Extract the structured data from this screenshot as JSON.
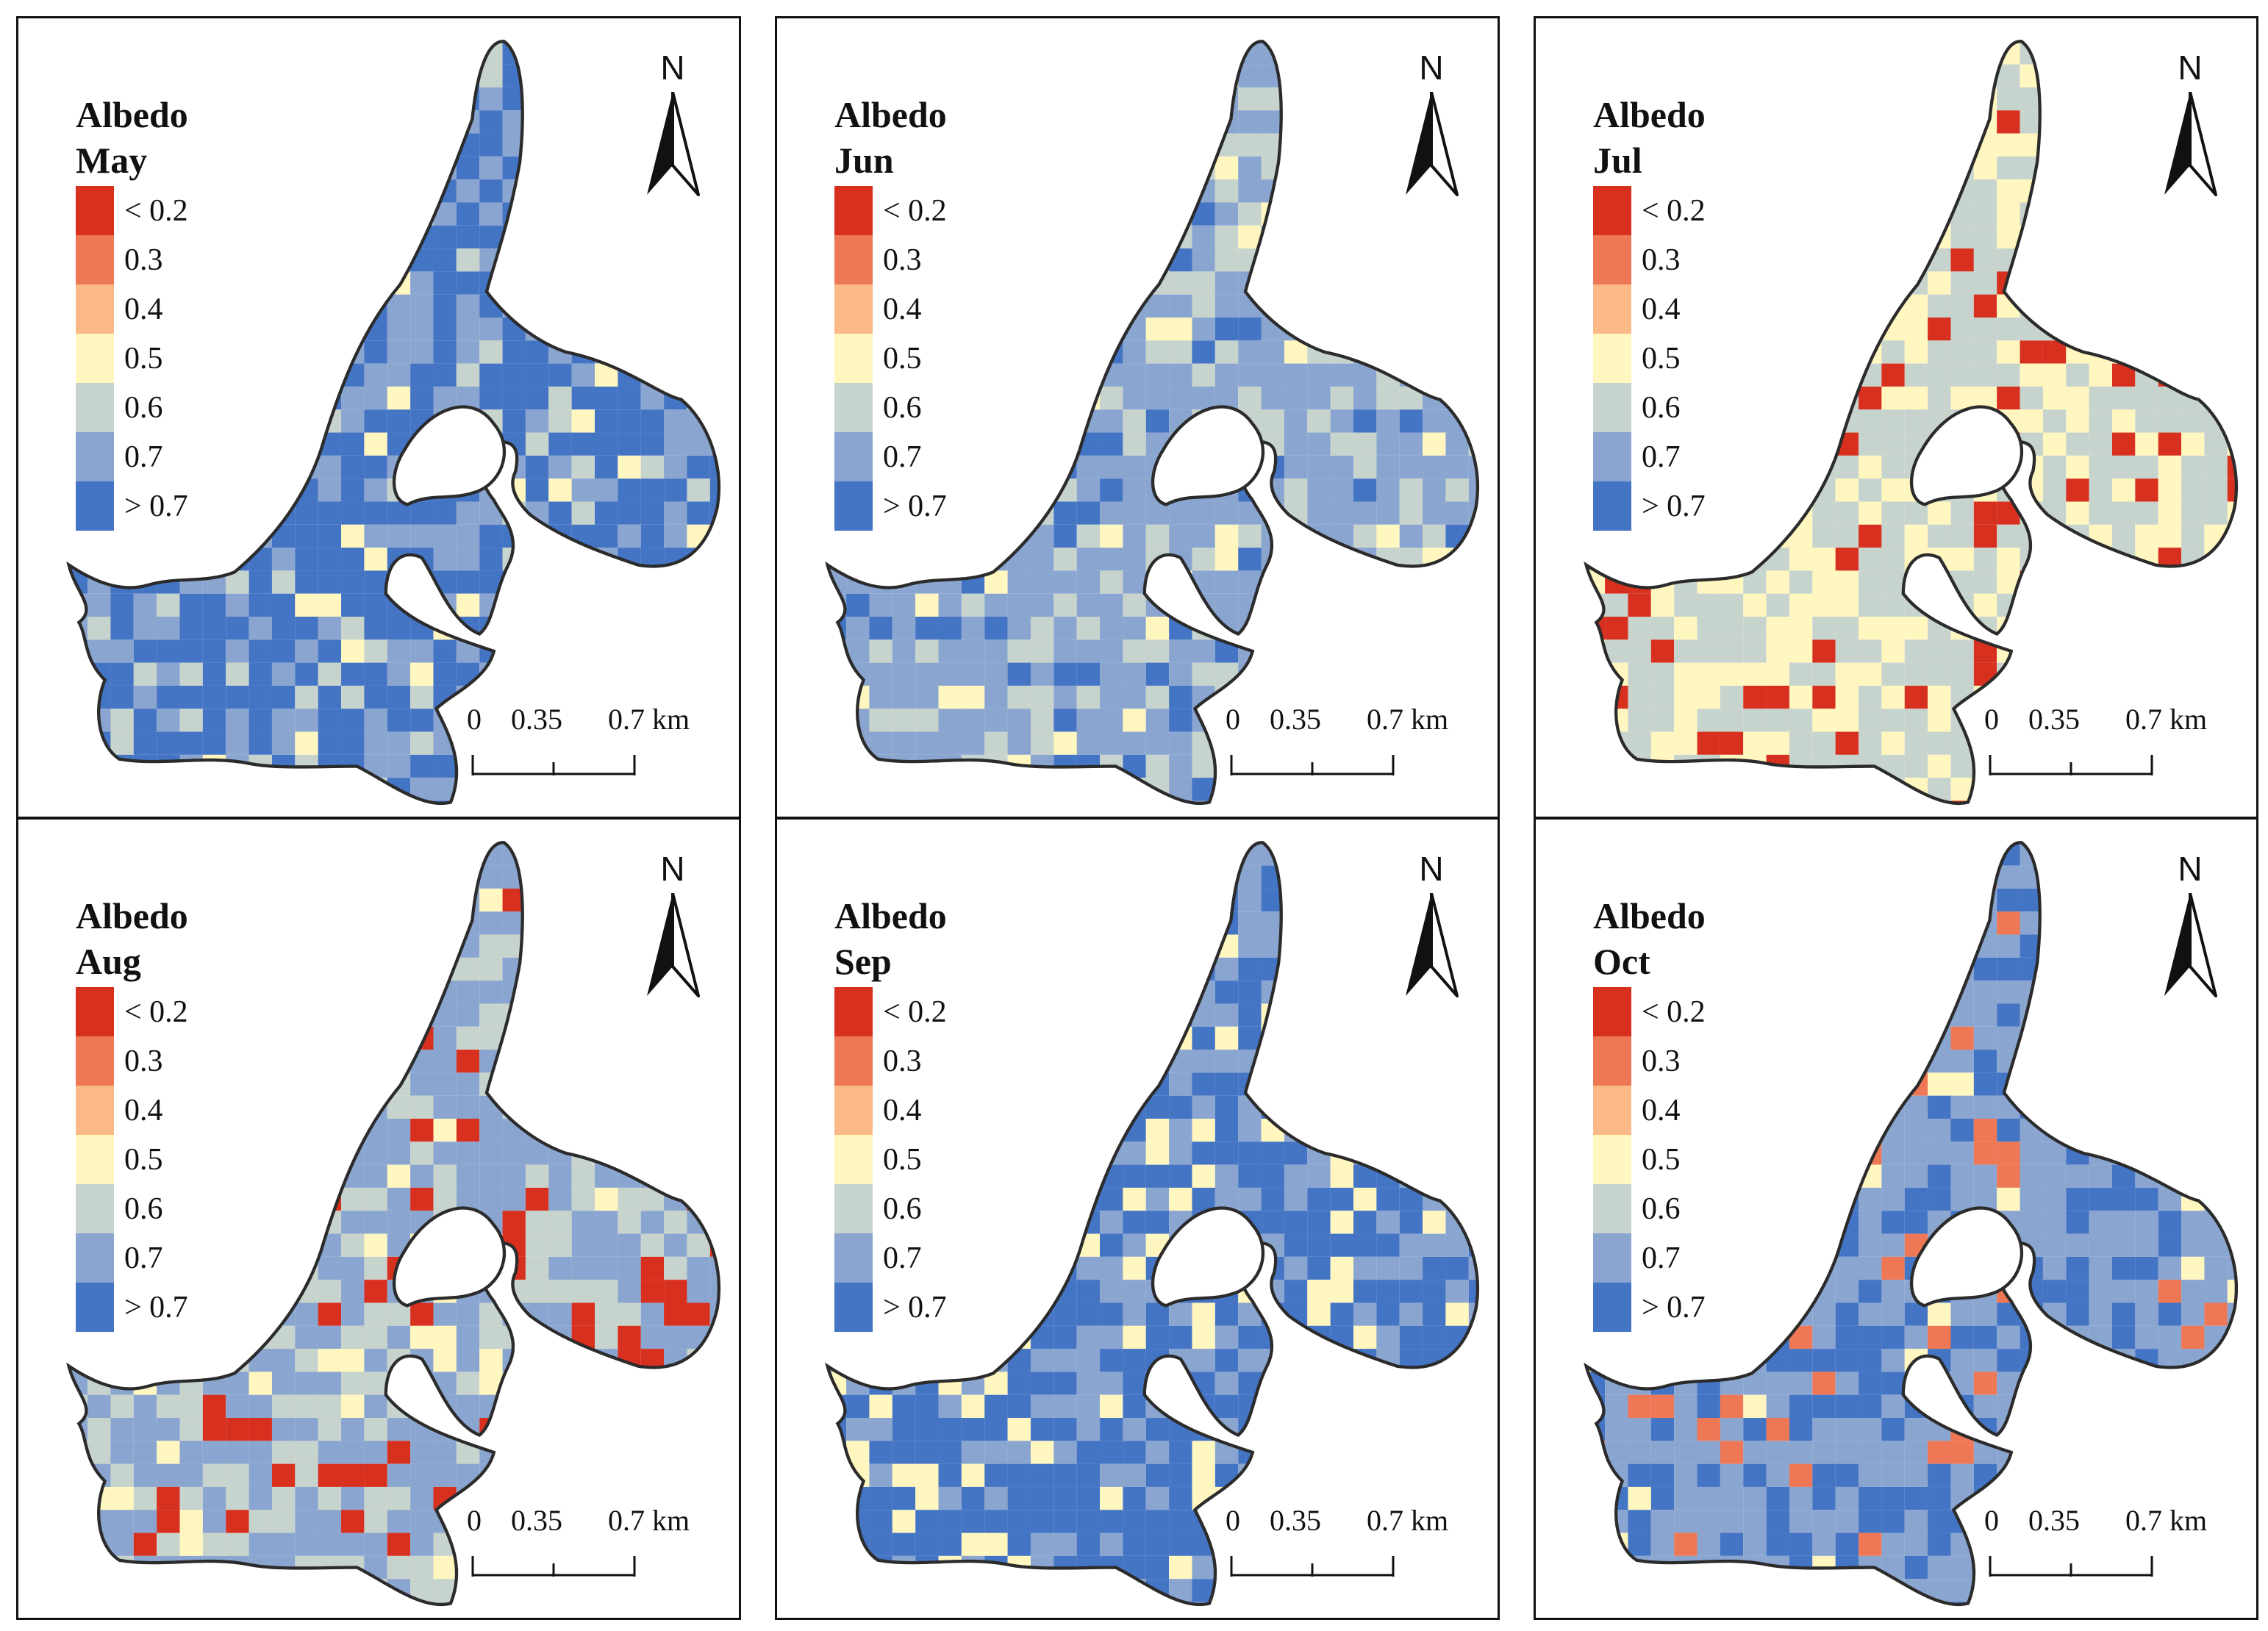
{
  "legend": {
    "title": "Albedo",
    "classes": [
      {
        "label": "< 0.2",
        "color": "#d7301f"
      },
      {
        "label": "0.3",
        "color": "#ee7755"
      },
      {
        "label": "0.4",
        "color": "#fbb988"
      },
      {
        "label": "0.5",
        "color": "#fff6c0"
      },
      {
        "label": "0.6",
        "color": "#c7d3cd"
      },
      {
        "label": "0.7",
        "color": "#8aa5cf"
      },
      {
        "label": "> 0.7",
        "color": "#4474c4"
      }
    ]
  },
  "north_arrow": {
    "letter": "N"
  },
  "scale_bar": {
    "labels": [
      "0",
      "0.35",
      "0.7 km"
    ]
  },
  "panels": [
    {
      "month": "May",
      "dominant_class": "> 0.7",
      "secondary_class": "0.7",
      "accent_class": "0.6"
    },
    {
      "month": "Jun",
      "dominant_class": "0.7",
      "secondary_class": "0.6",
      "accent_class": "> 0.7"
    },
    {
      "month": "Jul",
      "dominant_class": "0.6",
      "secondary_class": "0.5",
      "accent_class": "< 0.2"
    },
    {
      "month": "Aug",
      "dominant_class": "0.7",
      "secondary_class": "0.6",
      "accent_class": "< 0.2"
    },
    {
      "month": "Sep",
      "dominant_class": "> 0.7",
      "secondary_class": "0.7",
      "accent_class": "0.5"
    },
    {
      "month": "Oct",
      "dominant_class": "0.7",
      "secondary_class": "> 0.7",
      "accent_class": "0.3"
    }
  ]
}
